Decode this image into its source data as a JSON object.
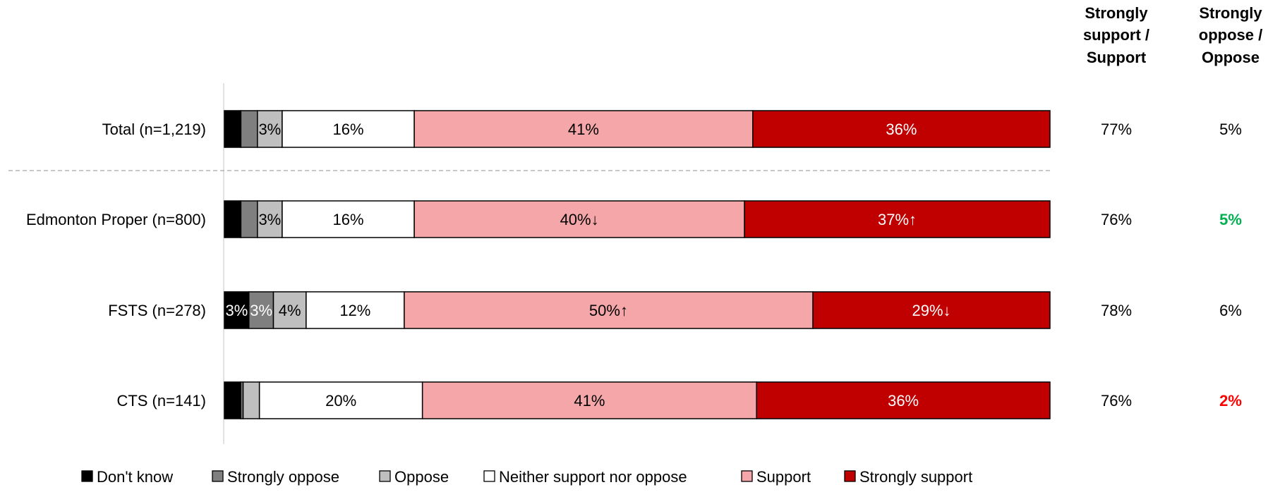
{
  "columns": {
    "support_header": [
      "Strongly",
      "support /",
      "Support"
    ],
    "oppose_header": [
      "Strongly",
      "oppose /",
      "Oppose"
    ]
  },
  "colors": {
    "dont_know": "#000000",
    "strongly_oppose": "#7f7f7f",
    "oppose": "#bfbfbf",
    "neither": "#ffffff",
    "support": "#f4a6a8",
    "strongly_support": "#c00000",
    "sig_high": "#00b050",
    "sig_low": "#ff0000"
  },
  "chart_data": {
    "type": "bar",
    "orientation": "horizontal",
    "stacked": true,
    "percent": true,
    "xlim": [
      0,
      100
    ],
    "legend_position": "bottom",
    "categories": [
      "Total (n=1,219)",
      "Edmonton Proper (n=800)",
      "FSTS (n=278)",
      "CTS (n=141)"
    ],
    "series": [
      {
        "name": "Don't know",
        "color": "#000000",
        "values": [
          2,
          2,
          3,
          2
        ],
        "labels": [
          "",
          "",
          "3%",
          ""
        ]
      },
      {
        "name": "Strongly oppose",
        "color": "#7f7f7f",
        "values": [
          2,
          2,
          3,
          0.3
        ],
        "labels": [
          "",
          "",
          "3%",
          ""
        ]
      },
      {
        "name": "Oppose",
        "color": "#bfbfbf",
        "values": [
          3,
          3,
          4,
          2
        ],
        "labels": [
          "3%",
          "3%",
          "4%",
          ""
        ]
      },
      {
        "name": "Neither support nor oppose",
        "color": "#ffffff",
        "values": [
          16,
          16,
          12,
          20
        ],
        "labels": [
          "16%",
          "16%",
          "12%",
          "20%"
        ]
      },
      {
        "name": "Support",
        "color": "#f4a6a8",
        "values": [
          41,
          40,
          50,
          41
        ],
        "labels": [
          "41%",
          "40%↓",
          "50%↑",
          "41%"
        ]
      },
      {
        "name": "Strongly support",
        "color": "#c00000",
        "values": [
          36,
          37,
          29,
          36
        ],
        "labels": [
          "36%",
          "37%↑",
          "29%↓",
          "36%"
        ]
      }
    ],
    "summary_support": [
      "77%",
      "76%",
      "78%",
      "76%"
    ],
    "summary_oppose": [
      {
        "text": "5%",
        "highlight": "none"
      },
      {
        "text": "5%",
        "highlight": "high"
      },
      {
        "text": "6%",
        "highlight": "none"
      },
      {
        "text": "2%",
        "highlight": "low"
      }
    ]
  }
}
